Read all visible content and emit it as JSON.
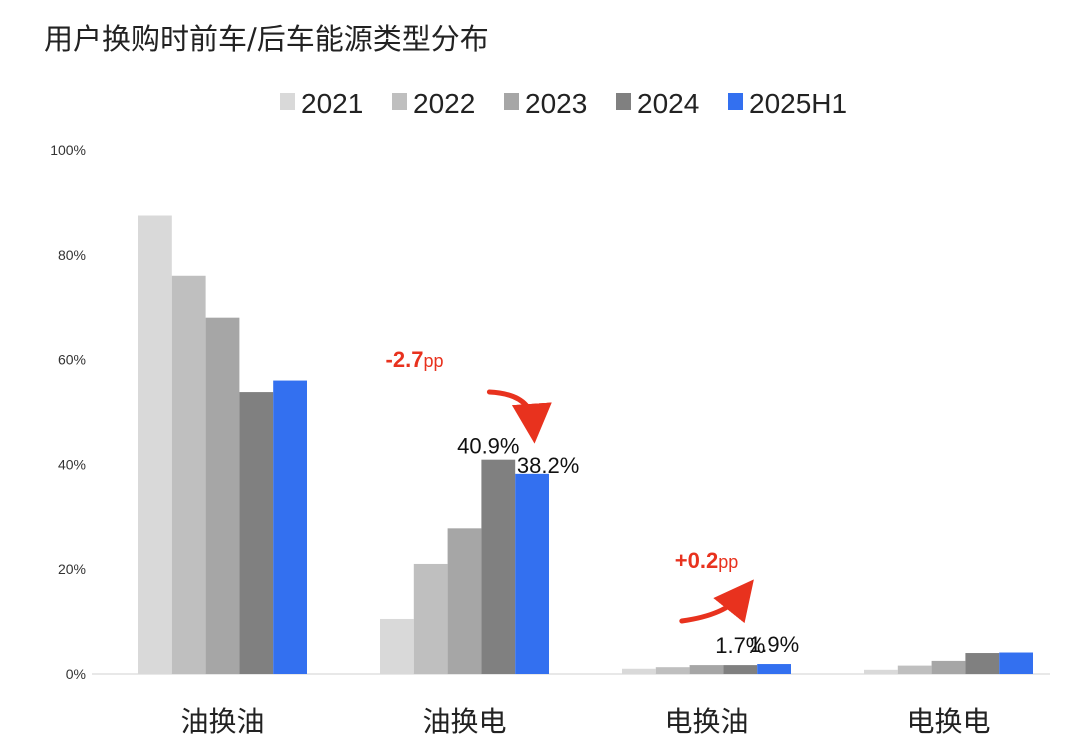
{
  "page": {
    "title": "用户换购时前车/后车能源类型分布"
  },
  "chart_data": {
    "type": "bar",
    "title": "用户换购时前车/后车能源类型分布",
    "xlabel": "",
    "ylabel": "",
    "ylim": [
      0,
      100
    ],
    "yticks": [
      "0%",
      "20%",
      "40%",
      "60%",
      "80%",
      "100%"
    ],
    "yticks_values": [
      0,
      20,
      40,
      60,
      80,
      100
    ],
    "categories": [
      "油换油",
      "油换电",
      "电换油",
      "电换电"
    ],
    "legend_position": "top-center",
    "grid": false,
    "series": [
      {
        "name": "2021",
        "color": "#d9d9d9",
        "values": [
          87.5,
          10.5,
          1.0,
          0.8
        ]
      },
      {
        "name": "2022",
        "color": "#bfbfbf",
        "values": [
          76.0,
          21.0,
          1.3,
          1.6
        ]
      },
      {
        "name": "2023",
        "color": "#a6a6a6",
        "values": [
          68.0,
          27.8,
          1.7,
          2.5
        ]
      },
      {
        "name": "2024",
        "color": "#808080",
        "values": [
          53.8,
          40.9,
          1.7,
          4.0
        ]
      },
      {
        "name": "2025H1",
        "color": "#3370f0",
        "values": [
          56.0,
          38.2,
          1.9,
          4.1
        ]
      }
    ],
    "data_labels": [
      {
        "category": 1,
        "series": 3,
        "text": "40.9%"
      },
      {
        "category": 1,
        "series": 4,
        "text": "38.2%"
      },
      {
        "category": 2,
        "series": 3,
        "text": "1.7%"
      },
      {
        "category": 2,
        "series": 4,
        "text": "1.9%"
      }
    ],
    "annotations": [
      {
        "category": 1,
        "value": "-2.7",
        "unit": "pp",
        "direction": "down",
        "color": "#e8321e"
      },
      {
        "category": 2,
        "value": "+0.2",
        "unit": "pp",
        "direction": "up",
        "color": "#e8321e"
      }
    ]
  }
}
